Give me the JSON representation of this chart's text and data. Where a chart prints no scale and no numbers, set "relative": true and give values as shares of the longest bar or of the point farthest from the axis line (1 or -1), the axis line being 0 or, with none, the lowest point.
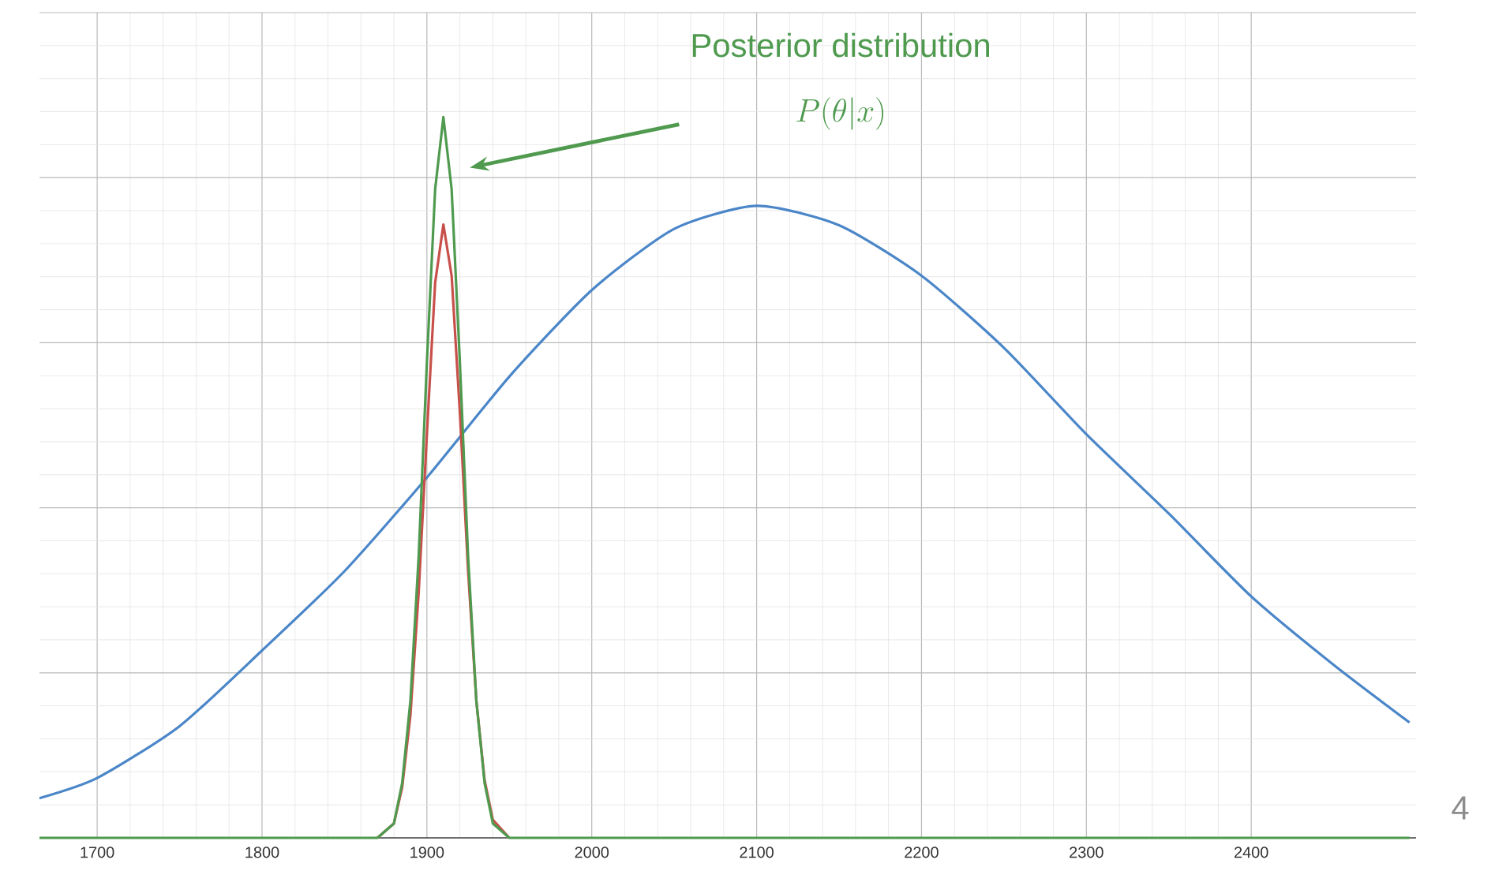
{
  "chart_data": {
    "type": "line",
    "relative": true,
    "xlim": [
      1665,
      2500
    ],
    "xticks": [
      1700,
      1800,
      1900,
      2000,
      2100,
      2200,
      2300,
      2400
    ],
    "grid": true,
    "marker": "none",
    "line_style": "solid",
    "series": [
      {
        "color": "#4a86c8",
        "x": [
          1665,
          1700,
          1750,
          1800,
          1850,
          1900,
          1950,
          2000,
          2050,
          2100,
          2150,
          2200,
          2250,
          2300,
          2350,
          2400,
          2450,
          2496
        ],
        "values": [
          0.055,
          0.083,
          0.155,
          0.26,
          0.37,
          0.5,
          0.64,
          0.76,
          0.845,
          0.877,
          0.85,
          0.78,
          0.68,
          0.56,
          0.45,
          0.335,
          0.24,
          0.16
        ]
      },
      {
        "color": "#c8504a",
        "x": [
          1870,
          1880,
          1885,
          1890,
          1895,
          1900,
          1905,
          1910,
          1915,
          1920,
          1925,
          1930,
          1935,
          1940,
          1950
        ],
        "values": [
          0,
          0.02,
          0.07,
          0.17,
          0.34,
          0.56,
          0.77,
          0.851,
          0.78,
          0.59,
          0.37,
          0.19,
          0.08,
          0.025,
          0
        ]
      },
      {
        "color": "#4f9a4f",
        "x": [
          1665,
          1870,
          1880,
          1885,
          1890,
          1895,
          1900,
          1905,
          1910,
          1915,
          1920,
          1925,
          1930,
          1935,
          1940,
          1950,
          2496
        ],
        "values": [
          0,
          0,
          0.02,
          0.076,
          0.19,
          0.39,
          0.66,
          0.9,
          1,
          0.9,
          0.66,
          0.39,
          0.19,
          0.076,
          0.02,
          0,
          0
        ]
      }
    ],
    "annotations": [
      "Posterior distribution",
      "P(\\theta|x)",
      "4"
    ]
  }
}
